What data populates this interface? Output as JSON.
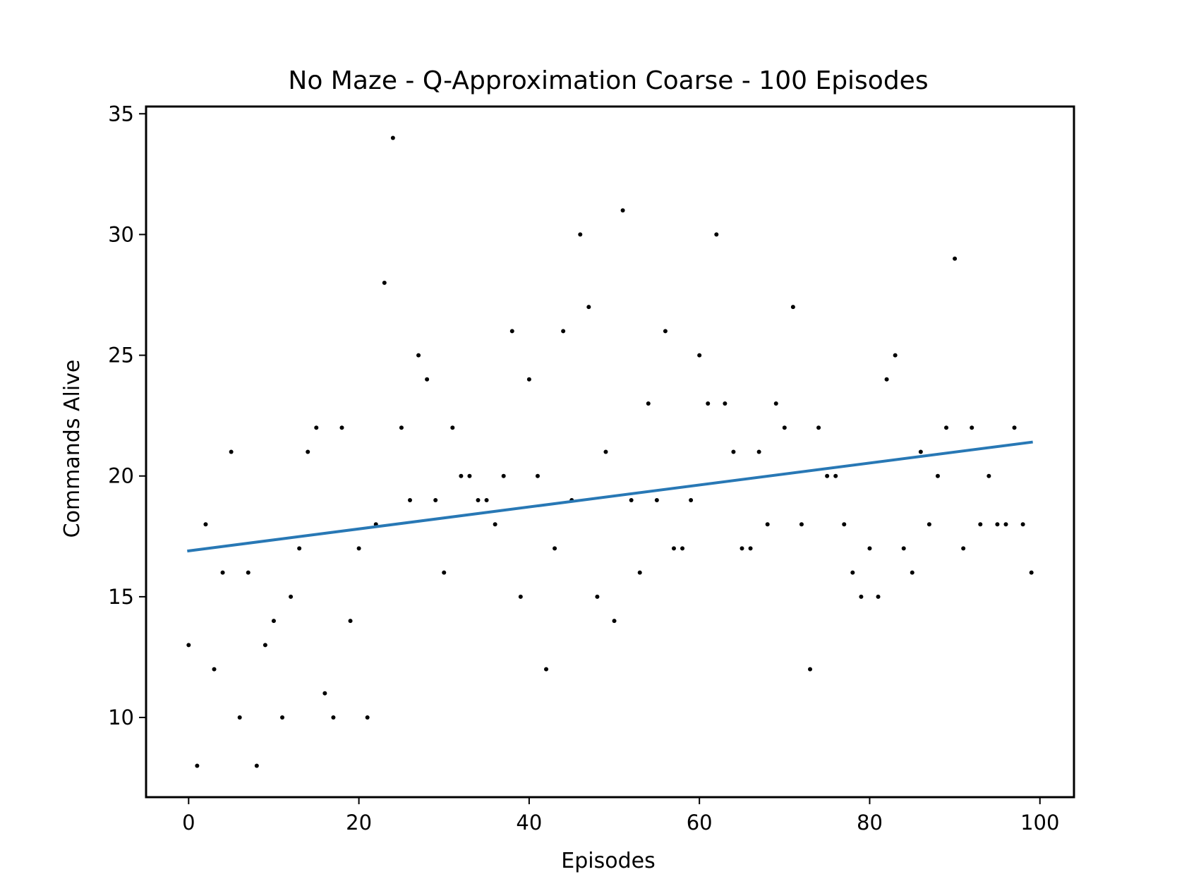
{
  "chart_data": {
    "type": "scatter",
    "title": "No Maze - Q-Approximation Coarse - 100 Episodes",
    "xlabel": "Episodes",
    "ylabel": "Commands Alive",
    "xlim": [
      -5,
      104
    ],
    "ylim": [
      6.7,
      35.3
    ],
    "xticks": [
      0,
      20,
      40,
      60,
      80,
      100
    ],
    "yticks": [
      10,
      15,
      20,
      25,
      30,
      35
    ],
    "grid": false,
    "legend": "none",
    "colors": {
      "points": "#000000",
      "trend": "#2878b5"
    },
    "x": [
      0,
      1,
      2,
      3,
      4,
      5,
      6,
      7,
      8,
      9,
      10,
      11,
      12,
      13,
      14,
      15,
      16,
      17,
      18,
      19,
      20,
      21,
      22,
      23,
      24,
      25,
      26,
      27,
      28,
      29,
      30,
      31,
      32,
      33,
      34,
      35,
      36,
      37,
      38,
      39,
      40,
      41,
      42,
      43,
      44,
      45,
      46,
      47,
      48,
      49,
      50,
      51,
      52,
      53,
      54,
      55,
      56,
      57,
      58,
      59,
      60,
      61,
      62,
      63,
      64,
      65,
      66,
      67,
      68,
      69,
      70,
      71,
      72,
      73,
      74,
      75,
      76,
      77,
      78,
      79,
      80,
      81,
      82,
      83,
      84,
      85,
      86,
      87,
      88,
      89,
      90,
      91,
      92,
      93,
      94,
      95,
      96,
      97,
      98,
      99
    ],
    "y": [
      13,
      8,
      18,
      12,
      16,
      21,
      10,
      16,
      8,
      13,
      14,
      10,
      15,
      17,
      21,
      22,
      11,
      10,
      22,
      14,
      17,
      10,
      18,
      28,
      34,
      22,
      19,
      25,
      24,
      19,
      16,
      22,
      20,
      20,
      19,
      19,
      18,
      20,
      26,
      15,
      24,
      20,
      12,
      17,
      26,
      19,
      30,
      27,
      15,
      21,
      14,
      31,
      19,
      16,
      23,
      19,
      26,
      17,
      17,
      19,
      25,
      23,
      30,
      23,
      21,
      17,
      17,
      21,
      18,
      23,
      22,
      27,
      18,
      12,
      22,
      20,
      20,
      18,
      16,
      15,
      17,
      15,
      24,
      25,
      17,
      16,
      21,
      18,
      20,
      22,
      29,
      17,
      22,
      18,
      20,
      18,
      18,
      22,
      18,
      16
    ],
    "trendline": {
      "x": [
        0,
        99
      ],
      "y": [
        16.9,
        21.4
      ]
    }
  }
}
